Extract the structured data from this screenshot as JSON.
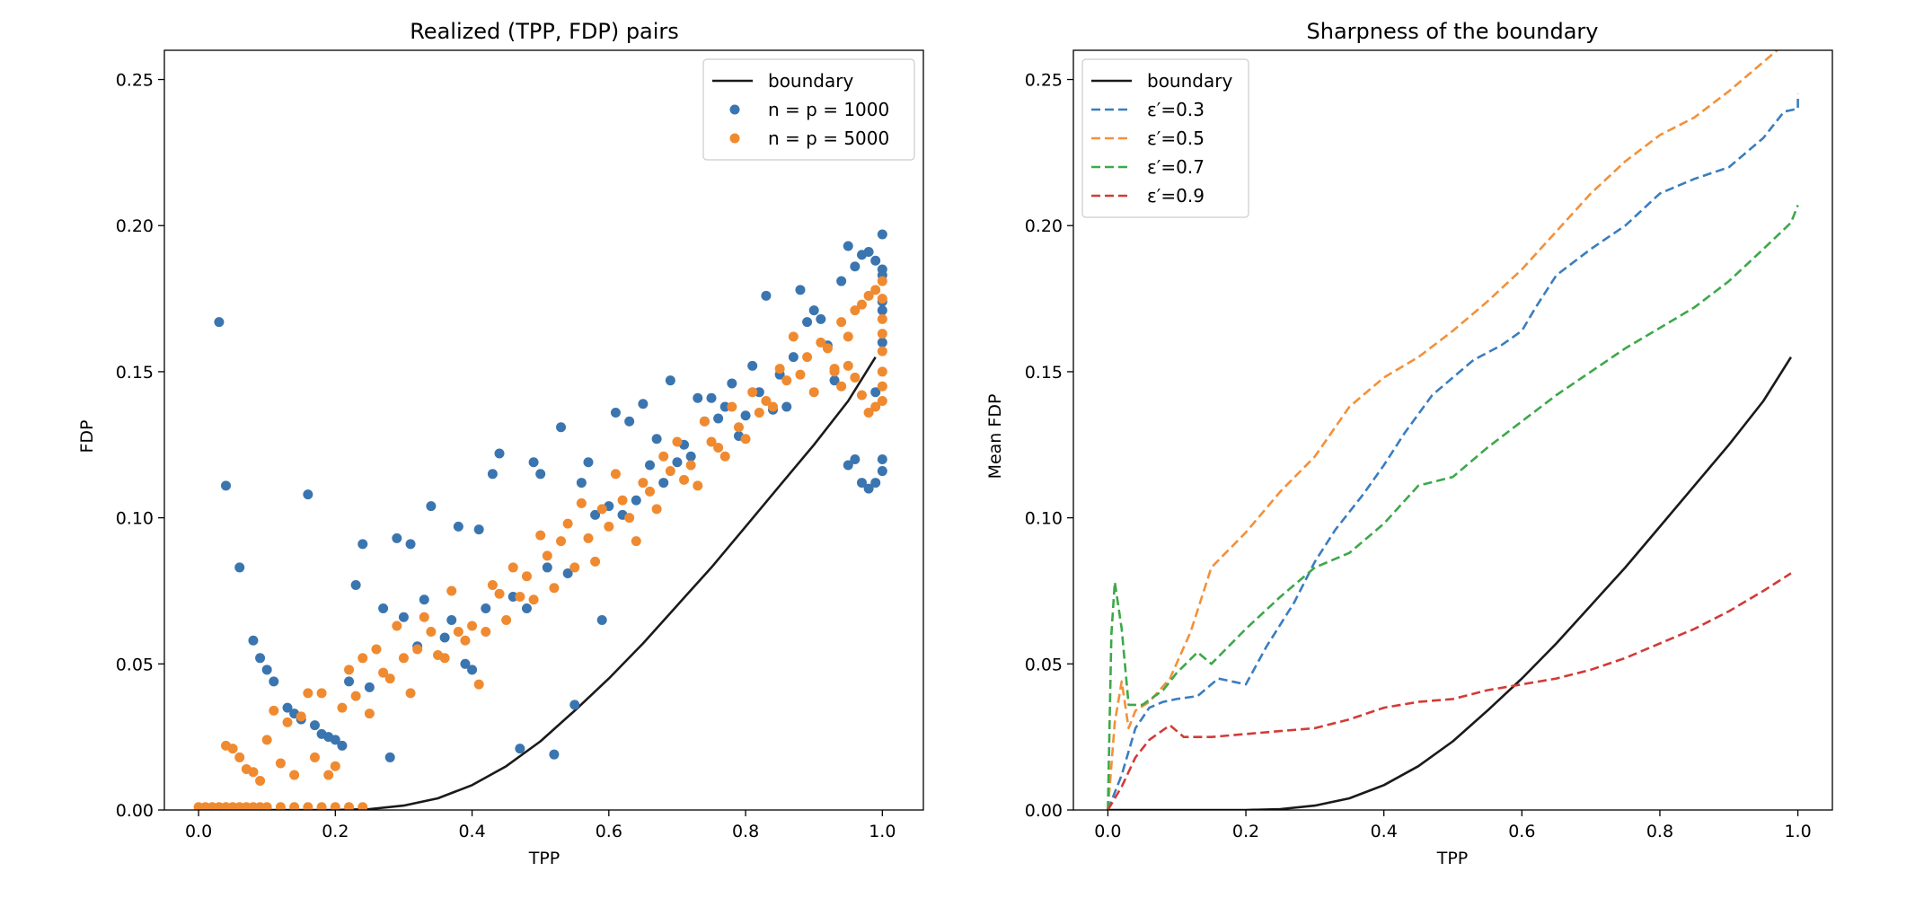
{
  "chart_data": [
    {
      "type": "scatter",
      "title": "Realized (TPP, FDP) pairs",
      "xlabel": "TPP",
      "ylabel": "FDP",
      "xlim": [
        -0.05,
        1.06
      ],
      "ylim": [
        0,
        0.26
      ],
      "xticks": [
        "0.0",
        "0.2",
        "0.4",
        "0.6",
        "0.8",
        "1.0"
      ],
      "yticks": [
        "0.00",
        "0.05",
        "0.10",
        "0.15",
        "0.20",
        "0.25"
      ],
      "legend_position": "top-right",
      "grid": false,
      "series": [
        {
          "name": "boundary",
          "kind": "line",
          "color": "#1a1a1a",
          "x": [
            0.0,
            0.1,
            0.2,
            0.25,
            0.3,
            0.35,
            0.4,
            0.45,
            0.5,
            0.55,
            0.6,
            0.65,
            0.7,
            0.75,
            0.8,
            0.85,
            0.9,
            0.95,
            0.99
          ],
          "y": [
            0.0,
            0.0,
            0.0,
            0.0003,
            0.0015,
            0.004,
            0.0085,
            0.015,
            0.0235,
            0.034,
            0.045,
            0.057,
            0.07,
            0.083,
            0.097,
            0.111,
            0.125,
            0.14,
            0.155
          ]
        },
        {
          "name": "n = p = 1000",
          "kind": "scatter",
          "color": "#3a75b0",
          "x": [
            0.03,
            0.04,
            0.06,
            0.08,
            0.09,
            0.1,
            0.11,
            0.13,
            0.14,
            0.15,
            0.16,
            0.17,
            0.18,
            0.19,
            0.2,
            0.21,
            0.22,
            0.23,
            0.24,
            0.25,
            0.27,
            0.28,
            0.29,
            0.3,
            0.31,
            0.32,
            0.33,
            0.34,
            0.36,
            0.37,
            0.38,
            0.39,
            0.4,
            0.41,
            0.42,
            0.43,
            0.44,
            0.46,
            0.47,
            0.48,
            0.49,
            0.5,
            0.51,
            0.52,
            0.53,
            0.54,
            0.55,
            0.56,
            0.57,
            0.58,
            0.59,
            0.6,
            0.61,
            0.62,
            0.63,
            0.64,
            0.65,
            0.66,
            0.67,
            0.68,
            0.69,
            0.7,
            0.71,
            0.72,
            0.73,
            0.74,
            0.75,
            0.76,
            0.77,
            0.78,
            0.79,
            0.8,
            0.81,
            0.82,
            0.83,
            0.84,
            0.85,
            0.86,
            0.87,
            0.88,
            0.89,
            0.9,
            0.91,
            0.92,
            0.93,
            0.94,
            0.95,
            0.96,
            0.97,
            0.98,
            0.99,
            1.0,
            1.0,
            1.0,
            1.0,
            1.0,
            1.0,
            0.99,
            0.98,
            0.97,
            0.96,
            0.95,
            1.0,
            1.0,
            0.99
          ],
          "y": [
            0.167,
            0.111,
            0.083,
            0.058,
            0.052,
            0.048,
            0.044,
            0.035,
            0.033,
            0.031,
            0.108,
            0.029,
            0.026,
            0.025,
            0.024,
            0.022,
            0.044,
            0.077,
            0.091,
            0.042,
            0.069,
            0.018,
            0.093,
            0.066,
            0.091,
            0.056,
            0.072,
            0.104,
            0.059,
            0.065,
            0.097,
            0.05,
            0.048,
            0.096,
            0.069,
            0.115,
            0.122,
            0.073,
            0.021,
            0.069,
            0.119,
            0.115,
            0.083,
            0.019,
            0.131,
            0.081,
            0.036,
            0.112,
            0.119,
            0.101,
            0.065,
            0.104,
            0.136,
            0.101,
            0.133,
            0.106,
            0.139,
            0.118,
            0.127,
            0.112,
            0.147,
            0.119,
            0.125,
            0.121,
            0.141,
            0.133,
            0.141,
            0.134,
            0.138,
            0.146,
            0.128,
            0.135,
            0.152,
            0.143,
            0.176,
            0.137,
            0.149,
            0.138,
            0.155,
            0.178,
            0.167,
            0.171,
            0.168,
            0.159,
            0.147,
            0.181,
            0.193,
            0.186,
            0.19,
            0.191,
            0.188,
            0.197,
            0.183,
            0.171,
            0.16,
            0.12,
            0.116,
            0.112,
            0.11,
            0.112,
            0.12,
            0.118,
            0.185,
            0.174,
            0.143
          ]
        },
        {
          "name": "n = p = 5000",
          "kind": "scatter",
          "color": "#f08a30",
          "x": [
            0.0,
            0.01,
            0.02,
            0.03,
            0.04,
            0.05,
            0.06,
            0.07,
            0.08,
            0.09,
            0.1,
            0.12,
            0.14,
            0.16,
            0.18,
            0.2,
            0.22,
            0.24,
            0.04,
            0.05,
            0.06,
            0.07,
            0.08,
            0.09,
            0.1,
            0.11,
            0.12,
            0.13,
            0.14,
            0.15,
            0.16,
            0.17,
            0.18,
            0.19,
            0.2,
            0.21,
            0.22,
            0.23,
            0.24,
            0.25,
            0.26,
            0.27,
            0.28,
            0.29,
            0.3,
            0.31,
            0.32,
            0.33,
            0.34,
            0.35,
            0.36,
            0.37,
            0.38,
            0.39,
            0.4,
            0.41,
            0.42,
            0.43,
            0.44,
            0.45,
            0.46,
            0.47,
            0.48,
            0.49,
            0.5,
            0.51,
            0.52,
            0.53,
            0.54,
            0.55,
            0.56,
            0.57,
            0.58,
            0.59,
            0.6,
            0.61,
            0.62,
            0.63,
            0.64,
            0.65,
            0.66,
            0.67,
            0.68,
            0.69,
            0.7,
            0.71,
            0.72,
            0.73,
            0.74,
            0.75,
            0.76,
            0.77,
            0.78,
            0.79,
            0.8,
            0.81,
            0.82,
            0.83,
            0.84,
            0.85,
            0.86,
            0.87,
            0.88,
            0.89,
            0.9,
            0.91,
            0.92,
            0.93,
            0.94,
            0.95,
            0.96,
            0.97,
            0.98,
            0.99,
            1.0,
            1.0,
            1.0,
            1.0,
            1.0,
            1.0,
            1.0,
            1.0,
            0.99,
            0.98,
            0.97,
            0.96,
            0.95,
            0.94,
            0.93
          ],
          "y": [
            0.001,
            0.001,
            0.001,
            0.001,
            0.001,
            0.001,
            0.001,
            0.001,
            0.001,
            0.001,
            0.001,
            0.001,
            0.001,
            0.001,
            0.001,
            0.001,
            0.001,
            0.001,
            0.022,
            0.021,
            0.018,
            0.014,
            0.013,
            0.01,
            0.024,
            0.034,
            0.016,
            0.03,
            0.012,
            0.032,
            0.04,
            0.018,
            0.04,
            0.012,
            0.015,
            0.035,
            0.048,
            0.039,
            0.052,
            0.033,
            0.055,
            0.047,
            0.045,
            0.063,
            0.052,
            0.04,
            0.055,
            0.066,
            0.061,
            0.053,
            0.052,
            0.075,
            0.061,
            0.058,
            0.063,
            0.043,
            0.061,
            0.077,
            0.074,
            0.065,
            0.083,
            0.073,
            0.08,
            0.072,
            0.094,
            0.087,
            0.076,
            0.092,
            0.098,
            0.083,
            0.105,
            0.093,
            0.085,
            0.103,
            0.097,
            0.115,
            0.106,
            0.1,
            0.092,
            0.112,
            0.109,
            0.103,
            0.121,
            0.116,
            0.126,
            0.113,
            0.118,
            0.111,
            0.133,
            0.126,
            0.124,
            0.121,
            0.138,
            0.131,
            0.127,
            0.143,
            0.136,
            0.14,
            0.138,
            0.151,
            0.147,
            0.162,
            0.149,
            0.155,
            0.143,
            0.16,
            0.158,
            0.151,
            0.167,
            0.162,
            0.171,
            0.173,
            0.176,
            0.178,
            0.181,
            0.175,
            0.168,
            0.163,
            0.157,
            0.15,
            0.145,
            0.14,
            0.138,
            0.136,
            0.142,
            0.148,
            0.152,
            0.145,
            0.15
          ]
        }
      ]
    },
    {
      "type": "line",
      "title": "Sharpness of the boundary",
      "xlabel": "TPP",
      "ylabel": "Mean FDP",
      "xlim": [
        -0.05,
        1.05
      ],
      "ylim": [
        0,
        0.26
      ],
      "xticks": [
        "0.0",
        "0.2",
        "0.4",
        "0.6",
        "0.8",
        "1.0"
      ],
      "yticks": [
        "0.00",
        "0.05",
        "0.10",
        "0.15",
        "0.20",
        "0.25"
      ],
      "legend_position": "top-left",
      "grid": false,
      "series": [
        {
          "name": "boundary",
          "style": "solid",
          "color": "#1a1a1a",
          "x": [
            0.0,
            0.1,
            0.2,
            0.25,
            0.3,
            0.35,
            0.4,
            0.45,
            0.5,
            0.55,
            0.6,
            0.65,
            0.7,
            0.75,
            0.8,
            0.85,
            0.9,
            0.95,
            0.99
          ],
          "y": [
            0.0,
            0.0,
            0.0,
            0.0003,
            0.0015,
            0.004,
            0.0085,
            0.015,
            0.0235,
            0.034,
            0.045,
            0.057,
            0.07,
            0.083,
            0.097,
            0.111,
            0.125,
            0.14,
            0.155
          ]
        },
        {
          "name": "ε′=0.3",
          "style": "dashed",
          "color": "#3a7dbf",
          "x": [
            0.0,
            0.02,
            0.04,
            0.06,
            0.08,
            0.1,
            0.13,
            0.16,
            0.2,
            0.23,
            0.27,
            0.3,
            0.33,
            0.37,
            0.4,
            0.43,
            0.47,
            0.5,
            0.53,
            0.57,
            0.6,
            0.62,
            0.65,
            0.7,
            0.75,
            0.8,
            0.85,
            0.9,
            0.95,
            0.98,
            1.0,
            1.0
          ],
          "y": [
            0.0,
            0.012,
            0.028,
            0.035,
            0.037,
            0.038,
            0.039,
            0.045,
            0.043,
            0.056,
            0.071,
            0.085,
            0.096,
            0.108,
            0.118,
            0.129,
            0.142,
            0.148,
            0.154,
            0.159,
            0.164,
            0.172,
            0.183,
            0.192,
            0.2,
            0.211,
            0.216,
            0.22,
            0.23,
            0.239,
            0.24,
            0.245
          ]
        },
        {
          "name": "ε′=0.5",
          "style": "dashed",
          "color": "#f2913a",
          "x": [
            0.0,
            0.01,
            0.02,
            0.03,
            0.04,
            0.06,
            0.09,
            0.12,
            0.15,
            0.2,
            0.25,
            0.3,
            0.35,
            0.4,
            0.45,
            0.5,
            0.55,
            0.6,
            0.65,
            0.7,
            0.75,
            0.8,
            0.85,
            0.9,
            0.95,
            0.97
          ],
          "y": [
            0.0,
            0.03,
            0.044,
            0.028,
            0.034,
            0.037,
            0.045,
            0.061,
            0.083,
            0.095,
            0.109,
            0.121,
            0.138,
            0.148,
            0.155,
            0.164,
            0.174,
            0.185,
            0.198,
            0.211,
            0.222,
            0.231,
            0.237,
            0.246,
            0.256,
            0.26
          ]
        },
        {
          "name": "ε′=0.7",
          "style": "dashed",
          "color": "#3da84a",
          "x": [
            0.0,
            0.005,
            0.01,
            0.02,
            0.03,
            0.05,
            0.08,
            0.1,
            0.13,
            0.15,
            0.2,
            0.25,
            0.3,
            0.35,
            0.4,
            0.45,
            0.5,
            0.55,
            0.6,
            0.65,
            0.7,
            0.75,
            0.8,
            0.85,
            0.9,
            0.95,
            0.99,
            1.0
          ],
          "y": [
            0.0,
            0.06,
            0.078,
            0.062,
            0.036,
            0.036,
            0.041,
            0.047,
            0.054,
            0.05,
            0.062,
            0.073,
            0.083,
            0.088,
            0.098,
            0.111,
            0.114,
            0.124,
            0.133,
            0.142,
            0.15,
            0.158,
            0.165,
            0.172,
            0.181,
            0.192,
            0.201,
            0.207
          ]
        },
        {
          "name": "ε′=0.9",
          "style": "dashed",
          "color": "#d23b36",
          "x": [
            0.0,
            0.02,
            0.04,
            0.06,
            0.09,
            0.11,
            0.15,
            0.2,
            0.25,
            0.3,
            0.35,
            0.4,
            0.45,
            0.5,
            0.55,
            0.6,
            0.65,
            0.7,
            0.75,
            0.8,
            0.85,
            0.9,
            0.95,
            0.99
          ],
          "y": [
            0.0,
            0.008,
            0.018,
            0.024,
            0.029,
            0.025,
            0.025,
            0.026,
            0.027,
            0.028,
            0.031,
            0.035,
            0.037,
            0.038,
            0.041,
            0.043,
            0.045,
            0.048,
            0.052,
            0.057,
            0.062,
            0.068,
            0.075,
            0.081
          ]
        }
      ]
    }
  ]
}
